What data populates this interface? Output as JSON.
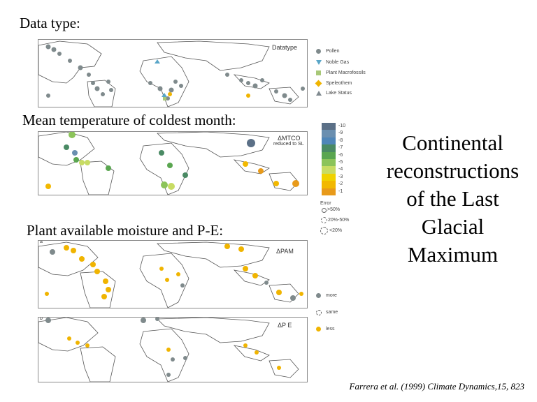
{
  "headings": {
    "data_type": "Data type:",
    "temperature": "Mean temperature of coldest month:",
    "moisture": "Plant available moisture and P-E:"
  },
  "panel_labels": {
    "datatype": "Datatype",
    "mtco": "ΔMTCO",
    "mtco_sub": "reduced to SL",
    "pam": "ΔPAM",
    "pe": "ΔP E",
    "panel_a": "a",
    "panel_b": "b"
  },
  "datatype_legend": [
    {
      "label": "Pollen",
      "color": "#7f8a8c"
    },
    {
      "label": "Noble Gas",
      "color": "#5aa6c8"
    },
    {
      "label": "Plant Macrofossils",
      "color": "#a8c878"
    },
    {
      "label": "Speleothem",
      "color": "#f0b400"
    },
    {
      "label": "Lake Status",
      "color": "#808a90"
    }
  ],
  "mtco_scale": {
    "labels": [
      "-10",
      "-9",
      "-8",
      "-7",
      "-6",
      "-5",
      "-4",
      "-3",
      "-2",
      "-1"
    ],
    "colors": [
      "#5b7087",
      "#6a8fb0",
      "#4f86b8",
      "#4a8a64",
      "#5aa650",
      "#8cc45a",
      "#c8dc64",
      "#f0d200",
      "#f2b800",
      "#e89a1a"
    ]
  },
  "error_legend": {
    "title": "Error",
    "items": [
      ">50%",
      "20%-50%",
      "<20%"
    ]
  },
  "pam_legend": [
    {
      "label": "more",
      "color": "#7f8a8c"
    },
    {
      "label": "same",
      "color": "#ffffff"
    },
    {
      "label": "less",
      "color": "#f0b400"
    }
  ],
  "title": {
    "line1": "Continental",
    "line2": "reconstructions",
    "line3": "of the Last",
    "line4": "Glacial",
    "line5": "Maximum"
  },
  "citation": "Farrera et al.  (1999) Climate Dynamics,15, 823"
}
